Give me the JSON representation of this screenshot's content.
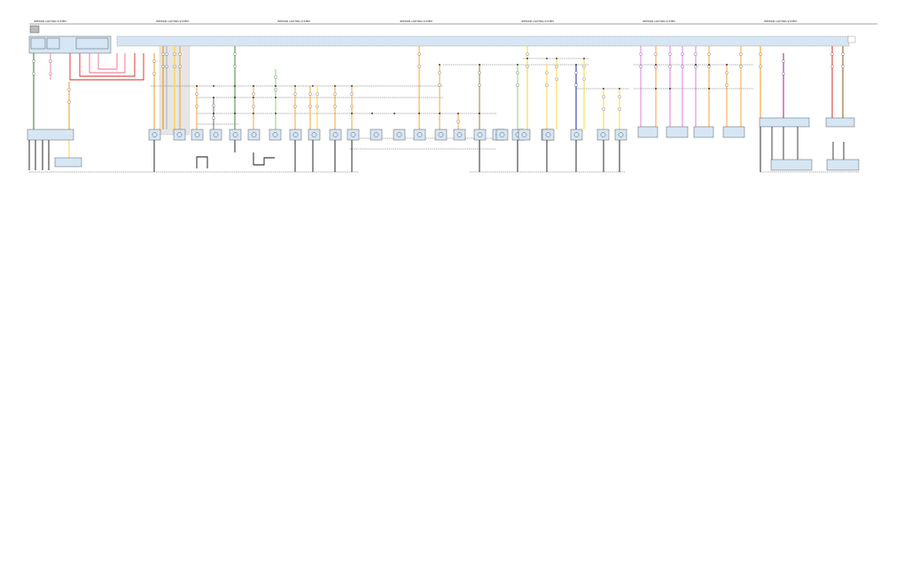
{
  "diagram": {
    "header_title": "INTERIOR LIGHTING SYSTEM",
    "header_count": 7,
    "colors": {
      "module_fill": "#d6e6f5",
      "black": "#111111",
      "orange": "#f39a1e",
      "red": "#d8281f",
      "pink": "#f06a8a",
      "yellow": "#ffd21f",
      "green": "#7fcf6a",
      "dark_green": "#2e7d1a",
      "violet": "#e070e0",
      "purple": "#9b1d8c",
      "blue": "#1a2ba0",
      "brown": "#8a5a10",
      "gray": "#888888"
    },
    "modules_upper": 4,
    "modules_lower": 26,
    "right_modules": 5
  }
}
